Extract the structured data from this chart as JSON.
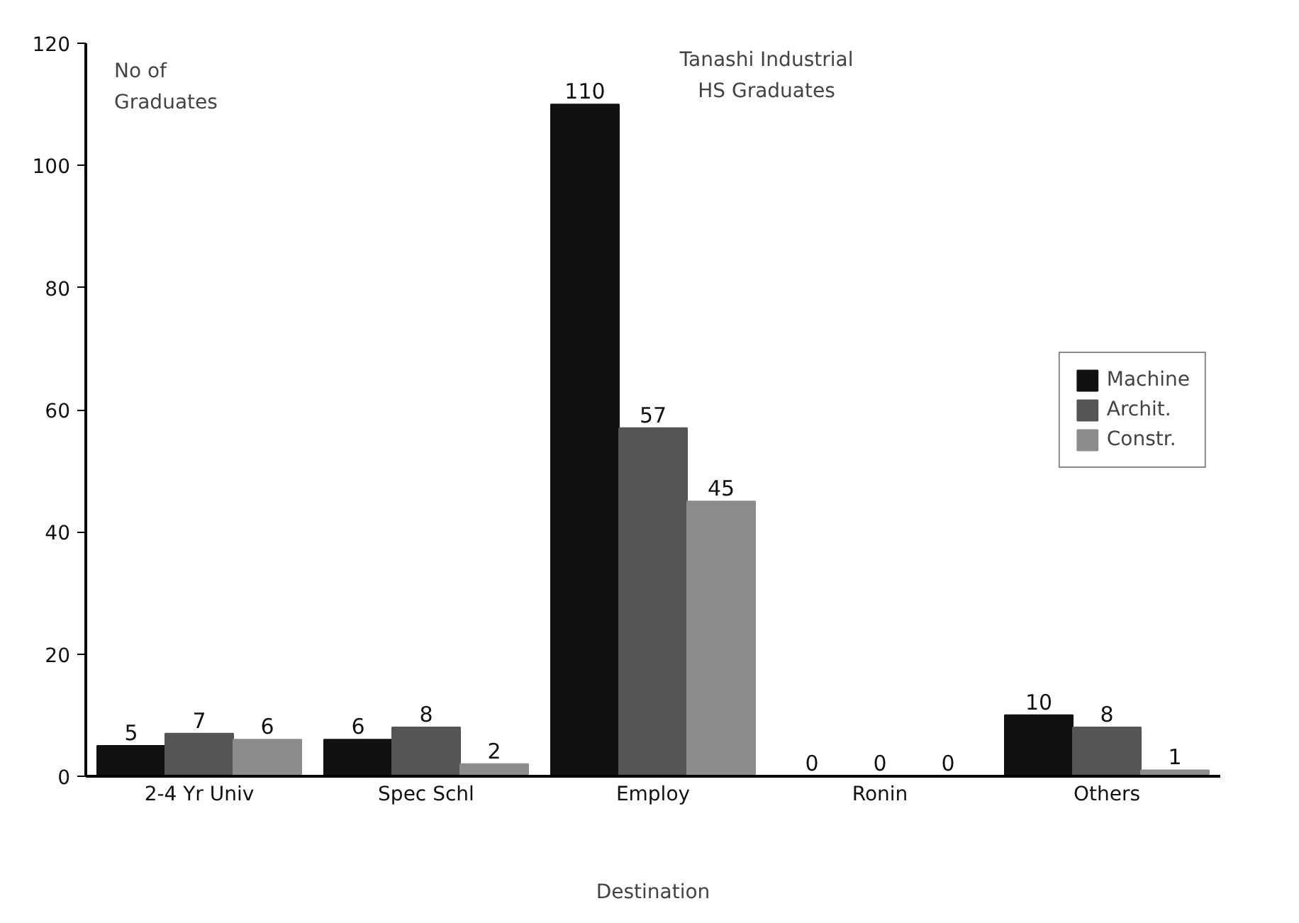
{
  "chart_data": {
    "type": "bar",
    "title": "Tanashi Industrial\nHS Graduates",
    "ylabel": "No of\nGraduates",
    "xlabel": "Destination",
    "categories": [
      "2-4 Yr Univ",
      "Spec Schl",
      "Employ",
      "Ronin",
      "Others"
    ],
    "series": [
      {
        "name": "Machine",
        "color": "#111111",
        "values": [
          5,
          6,
          110,
          0,
          10
        ]
      },
      {
        "name": "Archit.",
        "color": "#555555",
        "values": [
          7,
          8,
          57,
          0,
          8
        ]
      },
      {
        "name": "Constr.",
        "color": "#8c8c8c",
        "values": [
          6,
          2,
          45,
          0,
          1
        ]
      }
    ],
    "ylim": [
      0,
      120
    ],
    "yticks": [
      0,
      20,
      40,
      60,
      80,
      100,
      120
    ],
    "data_labels": true,
    "legend": "right",
    "grid": false
  }
}
